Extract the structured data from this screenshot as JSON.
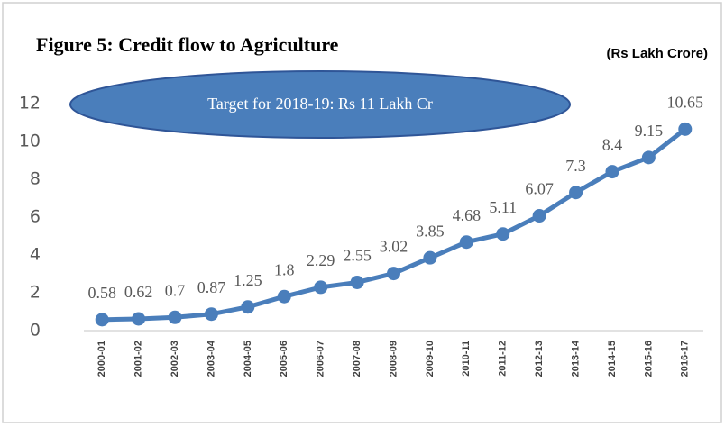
{
  "chart_data": {
    "type": "line",
    "title": "Figure 5: Credit flow to Agriculture",
    "unit_label": "(Rs Lakh Crore)",
    "annotation": "Target for 2018-19: Rs 11 Lakh Cr",
    "categories": [
      "2000-01",
      "2001-02",
      "2002-03",
      "2003-04",
      "2004-05",
      "2005-06",
      "2006-07",
      "2007-08",
      "2008-09",
      "2009-10",
      "2010-11",
      "2011-12",
      "2012-13",
      "2013-14",
      "2014-15",
      "2015-16",
      "2016-17"
    ],
    "values": [
      0.58,
      0.62,
      0.7,
      0.87,
      1.25,
      1.8,
      2.29,
      2.55,
      3.02,
      3.85,
      4.68,
      5.11,
      6.07,
      7.3,
      8.4,
      9.15,
      10.65
    ],
    "color": "#4a7ebb",
    "ylim": [
      0,
      12
    ],
    "yticks": [
      0,
      2,
      4,
      6,
      8,
      10,
      12
    ],
    "grid": false
  }
}
